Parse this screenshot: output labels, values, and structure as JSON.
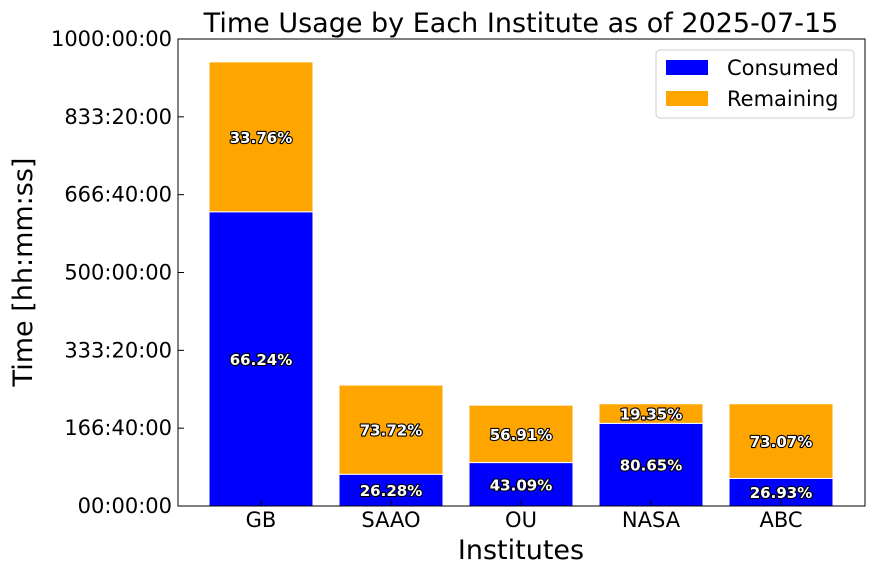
{
  "chart_data": {
    "type": "bar",
    "stacked": true,
    "title": "Time Usage by Each Institute as of 2025-07-15",
    "xlabel": "Institutes",
    "ylabel": "Time [hh:mm:ss]",
    "ylim_hours": [
      0,
      1000
    ],
    "y_ticks": [
      {
        "hours": 0,
        "label": "00:00:00"
      },
      {
        "hours": 166.6667,
        "label": "166:40:00"
      },
      {
        "hours": 333.3333,
        "label": "333:20:00"
      },
      {
        "hours": 500,
        "label": "500:00:00"
      },
      {
        "hours": 666.6667,
        "label": "666:40:00"
      },
      {
        "hours": 833.3333,
        "label": "833:20:00"
      },
      {
        "hours": 1000,
        "label": "1000:00:00"
      }
    ],
    "categories": [
      "GB",
      "SAAO",
      "OU",
      "NASA",
      "ABC"
    ],
    "series": [
      {
        "name": "Consumed",
        "color": "#0000ff",
        "values_hours": [
          630,
          68,
          93,
          177,
          59
        ],
        "labels": [
          "66.24%",
          "26.28%",
          "43.09%",
          "80.65%",
          "26.93%"
        ]
      },
      {
        "name": "Remaining",
        "color": "#ffa500",
        "values_hours": [
          321,
          191,
          123,
          42,
          160
        ],
        "labels": [
          "33.76%",
          "73.72%",
          "56.91%",
          "19.35%",
          "73.07%"
        ]
      }
    ],
    "legend_position": "top-right",
    "grid": false
  }
}
